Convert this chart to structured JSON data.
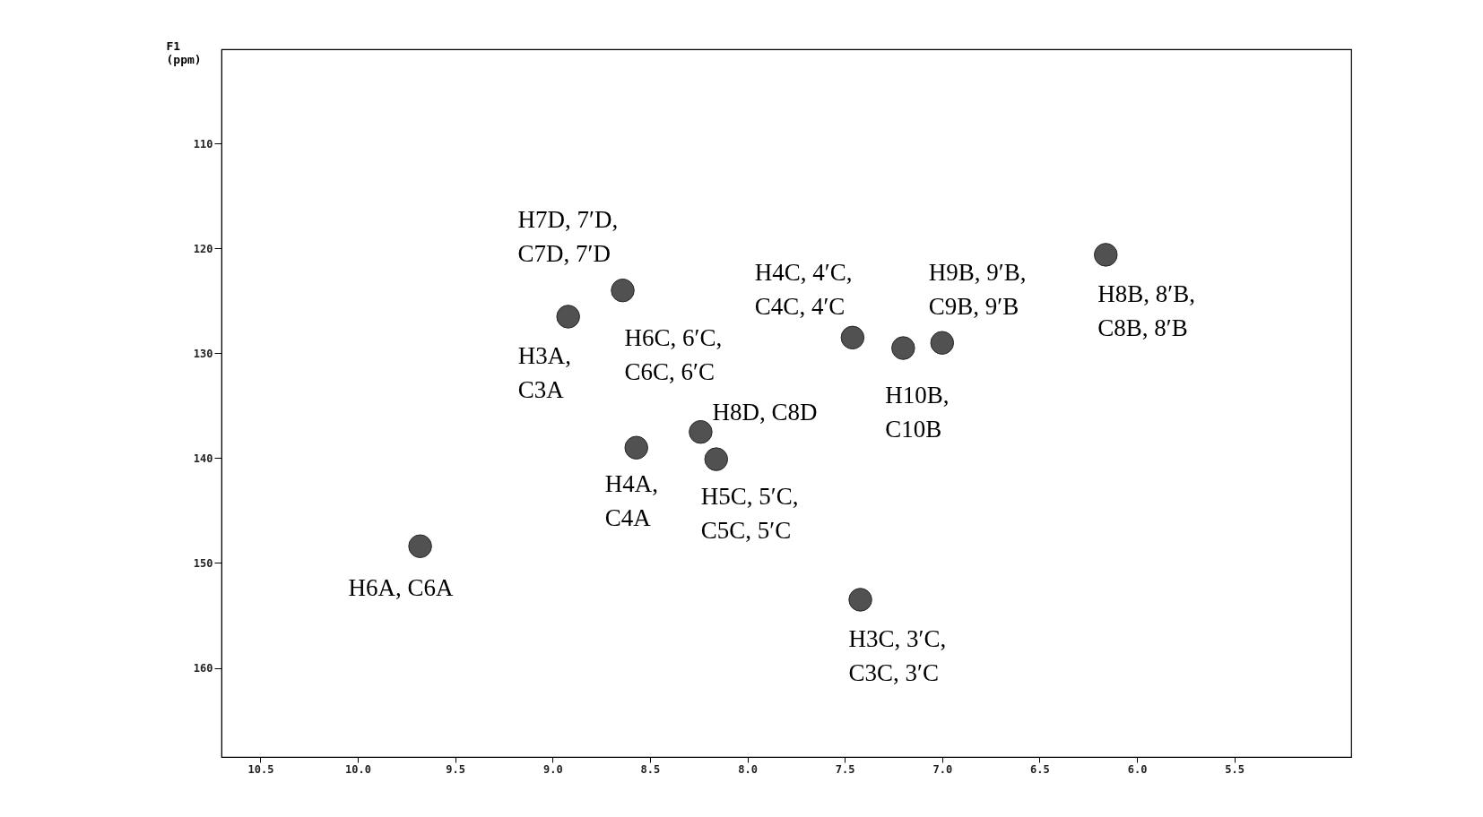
{
  "chart_data": {
    "type": "scatter",
    "ylabel": "F1 (ppm)",
    "marker": "circle",
    "xlim": [
      10.7,
      4.9
    ],
    "xticks": [
      {
        "value": 10.5,
        "label": "10.5"
      },
      {
        "value": 10,
        "label": "10.0"
      },
      {
        "value": 9.5,
        "label": "9.5"
      },
      {
        "value": 9,
        "label": "9.0"
      },
      {
        "value": 8.5,
        "label": "8.5"
      },
      {
        "value": 8,
        "label": "8.0"
      },
      {
        "value": 7.5,
        "label": "7.5"
      },
      {
        "value": 7,
        "label": "7.0"
      },
      {
        "value": 6.5,
        "label": "6.5"
      },
      {
        "value": 6,
        "label": "6.0"
      },
      {
        "value": 5.5,
        "label": "5.5"
      }
    ],
    "ylim": [
      168.5,
      101
    ],
    "yticks": [
      110,
      120,
      130,
      140,
      150,
      160
    ],
    "series": [
      {
        "color": "#333333",
        "x": [
          9.68,
          8.92,
          8.64,
          8.57,
          8.24,
          8.16,
          7.46,
          7.42,
          7.2,
          7.0,
          6.16
        ],
        "values": [
          148.4,
          126.5,
          124,
          139,
          137.5,
          140.1,
          128.5,
          153.5,
          129.5,
          129,
          120.6
        ]
      }
    ],
    "annotations": [
      {
        "text": "H7D, 7′D,\nC7D, 7′D",
        "x": 8.64,
        "y": 124
      },
      {
        "text": "H3A,\nC3A",
        "x": 8.92,
        "y": 126.5
      },
      {
        "text": "H6C, 6′C,\nC6C, 6′C",
        "x": 8.64,
        "y": 124
      },
      {
        "text": "H4C, 4′C,\nC4C, 4′C",
        "x": 7.46,
        "y": 128.5
      },
      {
        "text": "H9B, 9′B,\nC9B, 9′B",
        "x": 7.0,
        "y": 129
      },
      {
        "text": "H8B, 8′B,\nC8B, 8′B",
        "x": 6.16,
        "y": 120.6
      },
      {
        "text": "H10B,\nC10B",
        "x": 7.2,
        "y": 129.5
      },
      {
        "text": "H8D, C8D",
        "x": 8.24,
        "y": 137.5
      },
      {
        "text": "H4A,\nC4A",
        "x": 8.57,
        "y": 139
      },
      {
        "text": "H5C, 5′C,\nC5C, 5′C",
        "x": 8.16,
        "y": 140.1
      },
      {
        "text": "H6A, C6A",
        "x": 9.68,
        "y": 148.4
      },
      {
        "text": "H3C, 3′C,\nC3C, 3′C",
        "x": 7.42,
        "y": 153.5
      }
    ]
  }
}
